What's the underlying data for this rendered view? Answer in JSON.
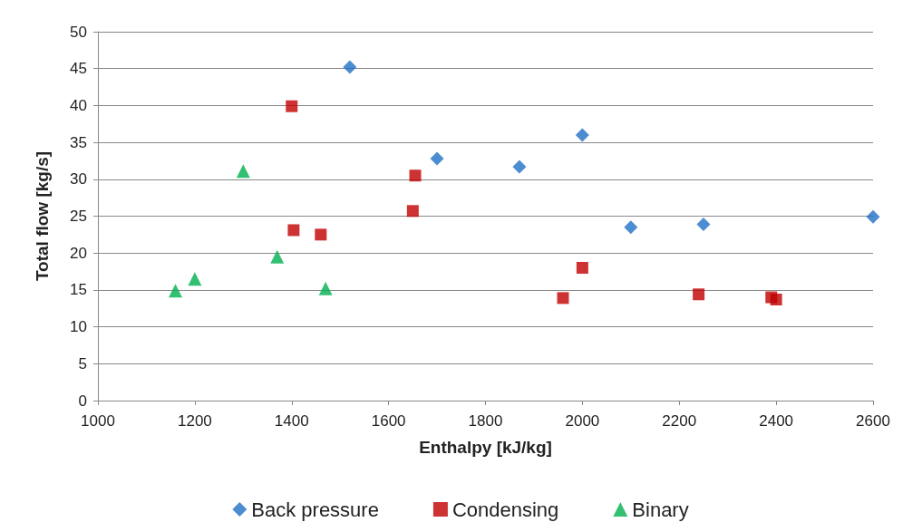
{
  "chart_data": {
    "type": "scatter",
    "xlabel": "Enthalpy [kJ/kg]",
    "ylabel": "Total flow [kg/s]",
    "xlim": [
      1000,
      2600
    ],
    "xticks": [
      1000,
      1200,
      1400,
      1600,
      1800,
      2000,
      2200,
      2400,
      2600
    ],
    "ylim": [
      0,
      50
    ],
    "yticks": [
      0,
      5,
      10,
      15,
      20,
      25,
      30,
      35,
      40,
      45,
      50
    ],
    "grid": "y",
    "legend": "bottom",
    "series": [
      {
        "name": "Back pressure",
        "color": "#1f6fc5",
        "marker": "diamond",
        "x": [
          1520,
          1700,
          1870,
          2000,
          2100,
          2250,
          2600
        ],
        "values": [
          45.2,
          32.8,
          31.7,
          36.0,
          23.5,
          23.9,
          24.9
        ]
      },
      {
        "name": "Condensing",
        "color": "#c00000",
        "marker": "square",
        "x": [
          1400,
          1404,
          1460,
          1650,
          1655,
          2000,
          1960,
          2240,
          2390,
          2400
        ],
        "values": [
          39.9,
          23.1,
          22.5,
          25.7,
          30.5,
          18.0,
          13.9,
          14.4,
          14.0,
          13.7
        ]
      },
      {
        "name": "Binary",
        "color": "#00b050",
        "marker": "triangle",
        "x": [
          1160,
          1200,
          1300,
          1370,
          1470
        ],
        "values": [
          14.9,
          16.5,
          31.1,
          19.5,
          15.2
        ]
      }
    ]
  }
}
